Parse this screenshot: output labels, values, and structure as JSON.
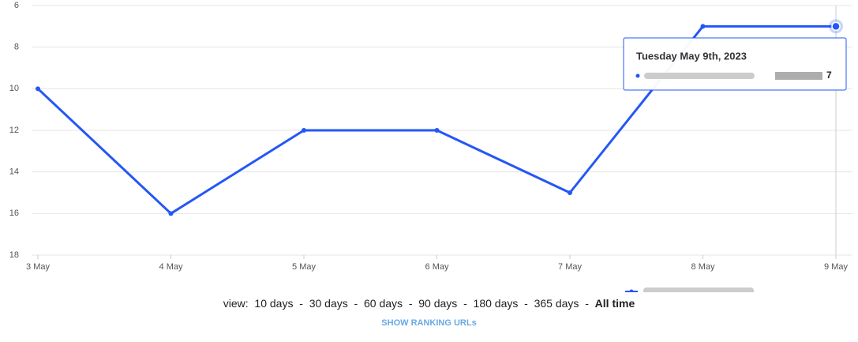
{
  "chart_data": {
    "type": "line",
    "categories": [
      "3 May",
      "4 May",
      "5 May",
      "6 May",
      "7 May",
      "8 May",
      "9 May"
    ],
    "series": [
      {
        "color": "#2457f5",
        "values": [
          10,
          16,
          12,
          12,
          15,
          7,
          7
        ]
      }
    ],
    "ylim": [
      6,
      18
    ],
    "yticks": [
      6,
      8,
      10,
      12,
      14,
      16,
      18
    ],
    "y_inverted": true,
    "grid": true,
    "tooltip": {
      "title": "Tuesday May 9th, 2023"
    }
  },
  "controls": {
    "view_label": "view:",
    "separator": "-",
    "options": [
      "10 days",
      "30 days",
      "60 days",
      "90 days",
      "180 days",
      "365 days",
      "All time"
    ],
    "active": "All time",
    "link": "SHOW RANKING URLs"
  }
}
